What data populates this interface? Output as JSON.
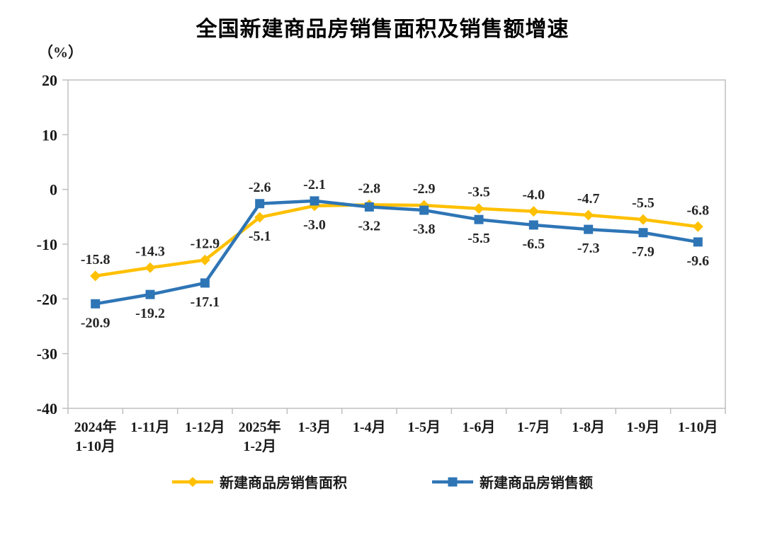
{
  "chart_data": {
    "type": "line",
    "title": "全国新建商品房销售面积及销售额增速",
    "unit": "（%）",
    "categories": [
      [
        "2024年",
        "1-10月"
      ],
      [
        "1-11月"
      ],
      [
        "1-12月"
      ],
      [
        "2025年",
        "1-2月"
      ],
      [
        "1-3月"
      ],
      [
        "1-4月"
      ],
      [
        "1-5月"
      ],
      [
        "1-6月"
      ],
      [
        "1-7月"
      ],
      [
        "1-8月"
      ],
      [
        "1-9月"
      ],
      [
        "1-10月"
      ]
    ],
    "y_ticks": [
      20,
      10,
      0,
      -10,
      -20,
      -30,
      -40
    ],
    "ylim": [
      -40,
      20
    ],
    "grid": false,
    "legend_position": "bottom",
    "axis_color": "#bfbfbf",
    "label_color": "#262626",
    "series": [
      {
        "name": "新建商品房销售面积",
        "color": "#FFC000",
        "marker": "diamond",
        "values": [
          -15.8,
          -14.3,
          -12.9,
          -5.1,
          -3.0,
          -2.8,
          -2.9,
          -3.5,
          -4.0,
          -4.7,
          -5.5,
          -6.8
        ]
      },
      {
        "name": "新建商品房销售额",
        "color": "#2E75B6",
        "marker": "square",
        "values": [
          -20.9,
          -19.2,
          -17.1,
          -2.6,
          -2.1,
          -3.2,
          -3.8,
          -5.5,
          -6.5,
          -7.3,
          -7.9,
          -9.6
        ]
      }
    ]
  }
}
